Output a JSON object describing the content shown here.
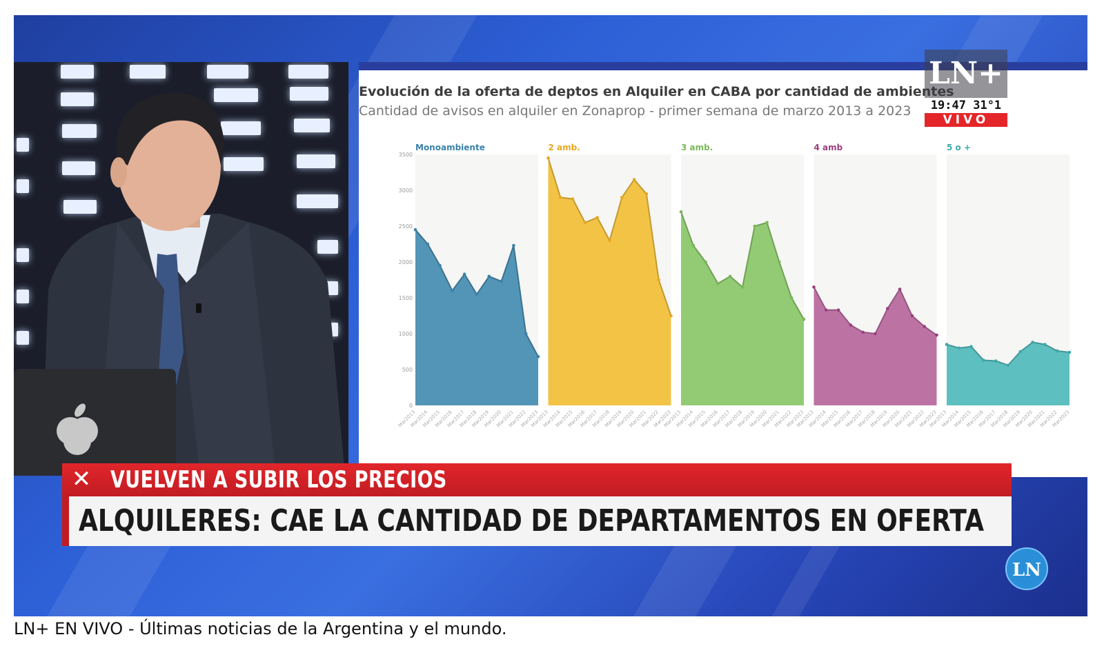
{
  "broadcast": {
    "logo_text": "LN+",
    "clock": "19:47 31°1",
    "live_label": "VIVO",
    "bug_logo": "LN",
    "kicker": "VUELVEN A SUBIR LOS PRECIOS",
    "headline": "ALQUILERES: CAE LA CANTIDAD DE DEPARTAMENTOS EN OFERTA",
    "kicker_icon": "close-x-icon"
  },
  "page": {
    "caption": "LN+ EN VIVO - Últimas noticias de la Argentina y el mundo."
  },
  "chart_data": {
    "type": "area",
    "title": "Evolución de la oferta de deptos en Alquiler en CABA por cantidad de ambientes",
    "subtitle": "Cantidad de avisos en alquiler en Zonaprop - primer semana de marzo 2013 a 2023",
    "ylim": [
      0,
      3500
    ],
    "yticks": [
      "0",
      "500",
      "1000",
      "1500",
      "2000",
      "2500",
      "3000",
      "3500"
    ],
    "yvalues": [
      0,
      500,
      1000,
      1500,
      2000,
      2500,
      3000,
      3500
    ],
    "xticks": [
      "Mar2013",
      "Mar2014",
      "Mar2015",
      "Mar2016",
      "Mar2017",
      "Mar2018",
      "Mar2019",
      "Mar2020",
      "Mar2021",
      "Mar2022",
      "Mar2023"
    ],
    "grid": false,
    "panels": [
      {
        "name": "Monoambiente",
        "color": "#4a8fb3",
        "label_color": "#3a82aa",
        "values": [
          2450,
          2250,
          1950,
          1600,
          1830,
          1550,
          1800,
          1730,
          2230,
          1000,
          680
        ]
      },
      {
        "name": "2 amb.",
        "color": "#f2c03c",
        "label_color": "#e8a820",
        "values": [
          3450,
          2900,
          2880,
          2550,
          2620,
          2300,
          2900,
          3150,
          2950,
          1750,
          1250
        ]
      },
      {
        "name": "3 amb.",
        "color": "#8cc86b",
        "label_color": "#7ab85a",
        "values": [
          2700,
          2230,
          2000,
          1700,
          1800,
          1650,
          2500,
          2550,
          2000,
          1500,
          1200
        ]
      },
      {
        "name": "4 amb",
        "color": "#b86c9f",
        "label_color": "#9a3f7e",
        "values": [
          1650,
          1330,
          1330,
          1120,
          1020,
          1000,
          1350,
          1620,
          1250,
          1100,
          980
        ]
      },
      {
        "name": "5 o +",
        "color": "#54bcbc",
        "label_color": "#3fa8aa",
        "values": [
          850,
          800,
          820,
          630,
          620,
          560,
          750,
          880,
          850,
          760,
          740
        ]
      }
    ]
  }
}
